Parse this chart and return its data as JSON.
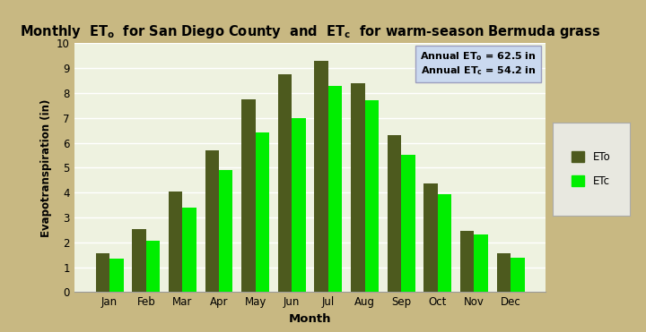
{
  "months": [
    "Jan",
    "Feb",
    "Mar",
    "Apr",
    "May",
    "Jun",
    "Jul",
    "Aug",
    "Sep",
    "Oct",
    "Nov",
    "Dec"
  ],
  "ETo": [
    1.55,
    2.55,
    4.05,
    5.7,
    7.75,
    8.75,
    9.3,
    8.4,
    6.3,
    4.35,
    2.45,
    1.55
  ],
  "ETc": [
    1.35,
    2.05,
    3.4,
    4.9,
    6.4,
    7.0,
    8.3,
    7.7,
    5.5,
    3.95,
    2.3,
    1.4
  ],
  "ETo_color": "#4d5a1e",
  "ETc_color": "#00ee00",
  "xlabel": "Month",
  "ylabel": "Evapotranspiration (in)",
  "ylim": [
    0,
    10
  ],
  "yticks": [
    0,
    1,
    2,
    3,
    4,
    5,
    6,
    7,
    8,
    9,
    10
  ],
  "outer_bg_color": "#c8b882",
  "plot_bg_color": "#eef2e0",
  "annot_box_color": "#c8d8f0",
  "legend_bg_color": "#e8e8e0",
  "grid_color": "#d0d8c0",
  "bar_width": 0.38
}
